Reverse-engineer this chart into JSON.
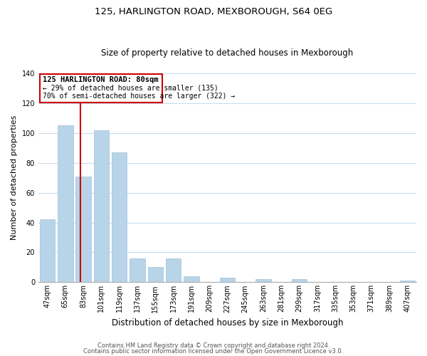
{
  "title": "125, HARLINGTON ROAD, MEXBOROUGH, S64 0EG",
  "subtitle": "Size of property relative to detached houses in Mexborough",
  "xlabel": "Distribution of detached houses by size in Mexborough",
  "ylabel": "Number of detached properties",
  "bar_labels": [
    "47sqm",
    "65sqm",
    "83sqm",
    "101sqm",
    "119sqm",
    "137sqm",
    "155sqm",
    "173sqm",
    "191sqm",
    "209sqm",
    "227sqm",
    "245sqm",
    "263sqm",
    "281sqm",
    "299sqm",
    "317sqm",
    "335sqm",
    "353sqm",
    "371sqm",
    "389sqm",
    "407sqm"
  ],
  "bar_heights": [
    42,
    105,
    71,
    102,
    87,
    16,
    10,
    16,
    4,
    0,
    3,
    0,
    2,
    0,
    2,
    0,
    0,
    0,
    0,
    0,
    1
  ],
  "bar_color": "#b8d4e8",
  "ref_line_label": "125 HARLINGTON ROAD: 80sqm",
  "annotation_line1": "← 29% of detached houses are smaller (135)",
  "annotation_line2": "70% of semi-detached houses are larger (322) →",
  "ylim": [
    0,
    140
  ],
  "yticks": [
    0,
    20,
    40,
    60,
    80,
    100,
    120,
    140
  ],
  "footer1": "Contains HM Land Registry data © Crown copyright and database right 2024.",
  "footer2": "Contains public sector information licensed under the Open Government Licence v3.0.",
  "box_edge_color": "#cc0000",
  "ref_line_color": "#cc0000",
  "background_color": "#ffffff",
  "grid_color": "#c8dced",
  "title_fontsize": 9.5,
  "subtitle_fontsize": 8.5,
  "ylabel_fontsize": 8,
  "xlabel_fontsize": 8.5,
  "tick_fontsize": 7,
  "footer_fontsize": 6
}
